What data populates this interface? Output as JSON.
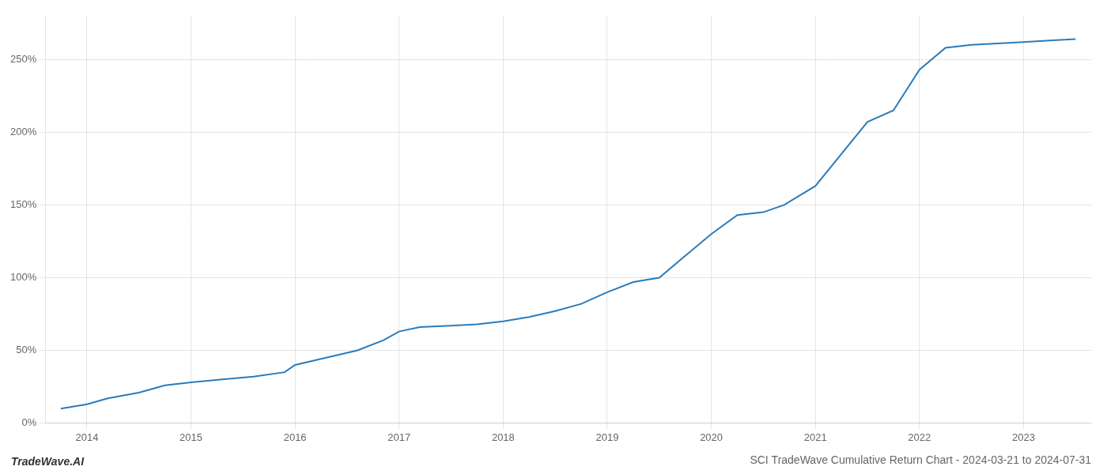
{
  "chart_data": {
    "type": "line",
    "title": "SCI TradeWave Cumulative Return Chart - 2024-03-21 to 2024-07-31",
    "annotations": [
      {
        "text": "TradeWave.AI"
      }
    ],
    "x": [
      2013.75,
      2014.0,
      2014.2,
      2014.5,
      2014.75,
      2015.0,
      2015.3,
      2015.6,
      2015.9,
      2016.0,
      2016.3,
      2016.6,
      2016.85,
      2017.0,
      2017.2,
      2017.5,
      2017.75,
      2018.0,
      2018.25,
      2018.5,
      2018.75,
      2019.0,
      2019.25,
      2019.5,
      2019.75,
      2020.0,
      2020.25,
      2020.5,
      2020.7,
      2021.0,
      2021.25,
      2021.5,
      2021.75,
      2022.0,
      2022.25,
      2022.5,
      2022.75,
      2023.0,
      2023.25,
      2023.5
    ],
    "values": [
      10,
      13,
      17,
      21,
      26,
      28,
      30,
      32,
      35,
      40,
      45,
      50,
      57,
      63,
      66,
      67,
      68,
      70,
      73,
      77,
      82,
      90,
      97,
      100,
      115,
      130,
      143,
      145,
      150,
      163,
      185,
      207,
      215,
      243,
      258,
      260,
      261,
      262,
      263,
      264
    ],
    "color": "#2b7bba",
    "xlim": [
      2013.6,
      2023.65
    ],
    "xticks": [
      2014,
      2015,
      2016,
      2017,
      2018,
      2019,
      2020,
      2021,
      2022,
      2023
    ],
    "ylim": [
      0,
      280
    ],
    "yticks": [
      {
        "value": 0,
        "label": "0%"
      },
      {
        "value": 50,
        "label": "50%"
      },
      {
        "value": 100,
        "label": "100%"
      },
      {
        "value": 150,
        "label": "150%"
      },
      {
        "value": 200,
        "label": "200%"
      },
      {
        "value": 250,
        "label": "250%"
      }
    ],
    "grid": true
  }
}
